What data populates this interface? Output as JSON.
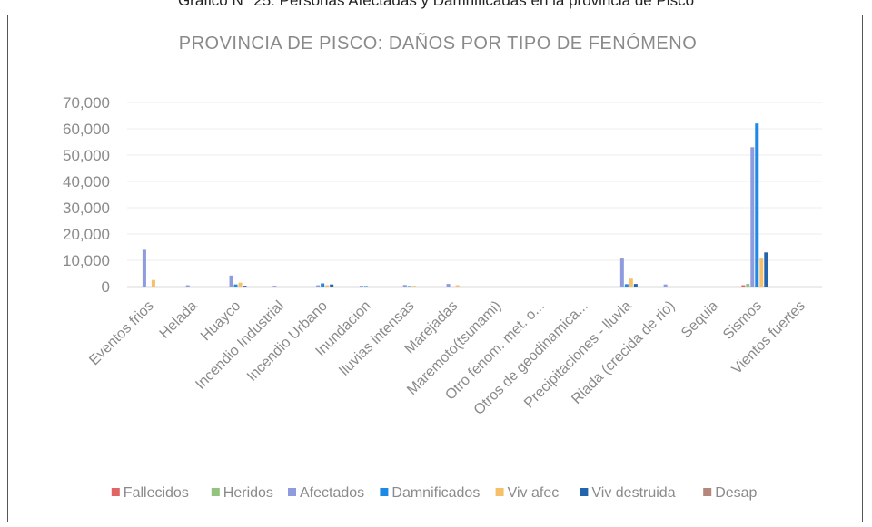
{
  "page_caption": "Gráfico N° 25: Personas Afectadas y Damnificadas en la provincia de Pisco",
  "chart_data": {
    "type": "bar",
    "title": "PROVINCIA DE PISCO: DAÑOS POR TIPO DE FENÓMENO",
    "xlabel": "",
    "ylabel": "",
    "ylim": [
      0,
      70000
    ],
    "y_ticks": [
      "0",
      "10,000",
      "20,000",
      "30,000",
      "40,000",
      "50,000",
      "60,000",
      "70,000"
    ],
    "grid": true,
    "legend_position": "bottom",
    "categories": [
      "Eventos frios",
      "Helada",
      "Huayco",
      "Incendio Industrial",
      "Incendio Urbano",
      "Inundacion",
      "lluvias intensas",
      "Marejadas",
      "Maremoto(tsunami)",
      "Otro fenom. met. o...",
      "Otros de geodinamica...",
      "Precipitaciones - lluvia",
      "Riada (crecida de rio)",
      "Sequia",
      "Sismos",
      "Vientos fuertes"
    ],
    "series": [
      {
        "name": "Fallecidos",
        "color": "#e06666",
        "values": [
          0,
          0,
          0,
          0,
          0,
          0,
          0,
          0,
          0,
          0,
          0,
          0,
          0,
          0,
          500,
          0
        ]
      },
      {
        "name": "Heridos",
        "color": "#93c47d",
        "values": [
          0,
          0,
          0,
          0,
          0,
          0,
          0,
          0,
          0,
          0,
          0,
          0,
          0,
          0,
          1000,
          0
        ]
      },
      {
        "name": "Afectados",
        "color": "#8e9bdc",
        "values": [
          14000,
          500,
          4200,
          300,
          500,
          300,
          600,
          1000,
          0,
          0,
          0,
          11000,
          800,
          0,
          53000,
          0
        ]
      },
      {
        "name": "Damnificados",
        "color": "#1e88e5",
        "values": [
          0,
          0,
          800,
          0,
          1200,
          200,
          200,
          0,
          0,
          0,
          0,
          900,
          0,
          0,
          62000,
          0
        ]
      },
      {
        "name": "Viv afec",
        "color": "#f6c06b",
        "values": [
          2500,
          0,
          1500,
          0,
          500,
          0,
          300,
          500,
          0,
          0,
          0,
          3000,
          0,
          0,
          11000,
          0
        ]
      },
      {
        "name": "Viv destruida",
        "color": "#2364aa",
        "values": [
          0,
          0,
          300,
          0,
          800,
          0,
          0,
          0,
          0,
          0,
          0,
          1000,
          0,
          0,
          13000,
          0
        ]
      },
      {
        "name": "Desap",
        "color": "#b4867c",
        "values": [
          0,
          0,
          0,
          0,
          0,
          0,
          0,
          0,
          0,
          0,
          0,
          0,
          0,
          0,
          0,
          0
        ]
      }
    ]
  }
}
